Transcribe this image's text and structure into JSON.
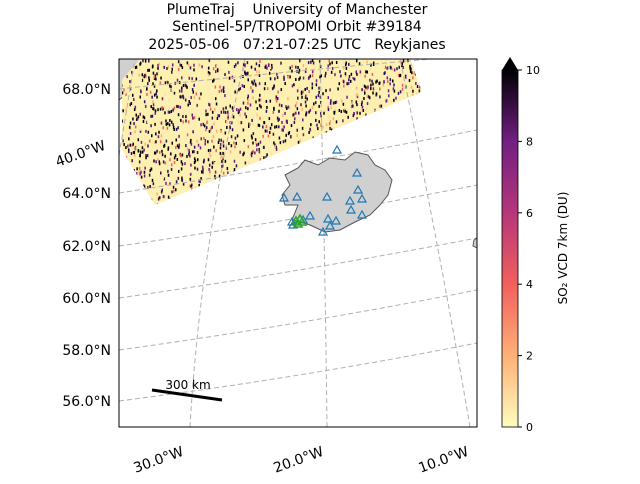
{
  "title_lines": [
    "PlumeTraj    University of Manchester",
    "Sentinel-5P/TROPOMI Orbit #39184",
    "2025-05-06   07:21-07:25 UTC   Reykjanes"
  ],
  "lat_labels": [
    "68.0°N",
    "64.0°N",
    "62.0°N",
    "60.0°N",
    "58.0°N",
    "56.0°N"
  ],
  "lon_labels": [
    "40.0°W",
    "30.0°W",
    "20.0°W",
    "10.0°W"
  ],
  "scale_bar": "300 km",
  "colorbar": {
    "label": "SO₂ VCD 7km (DU)",
    "lim": [
      0,
      10
    ],
    "ticks": [
      0,
      2,
      4,
      6,
      8,
      10
    ]
  }
}
